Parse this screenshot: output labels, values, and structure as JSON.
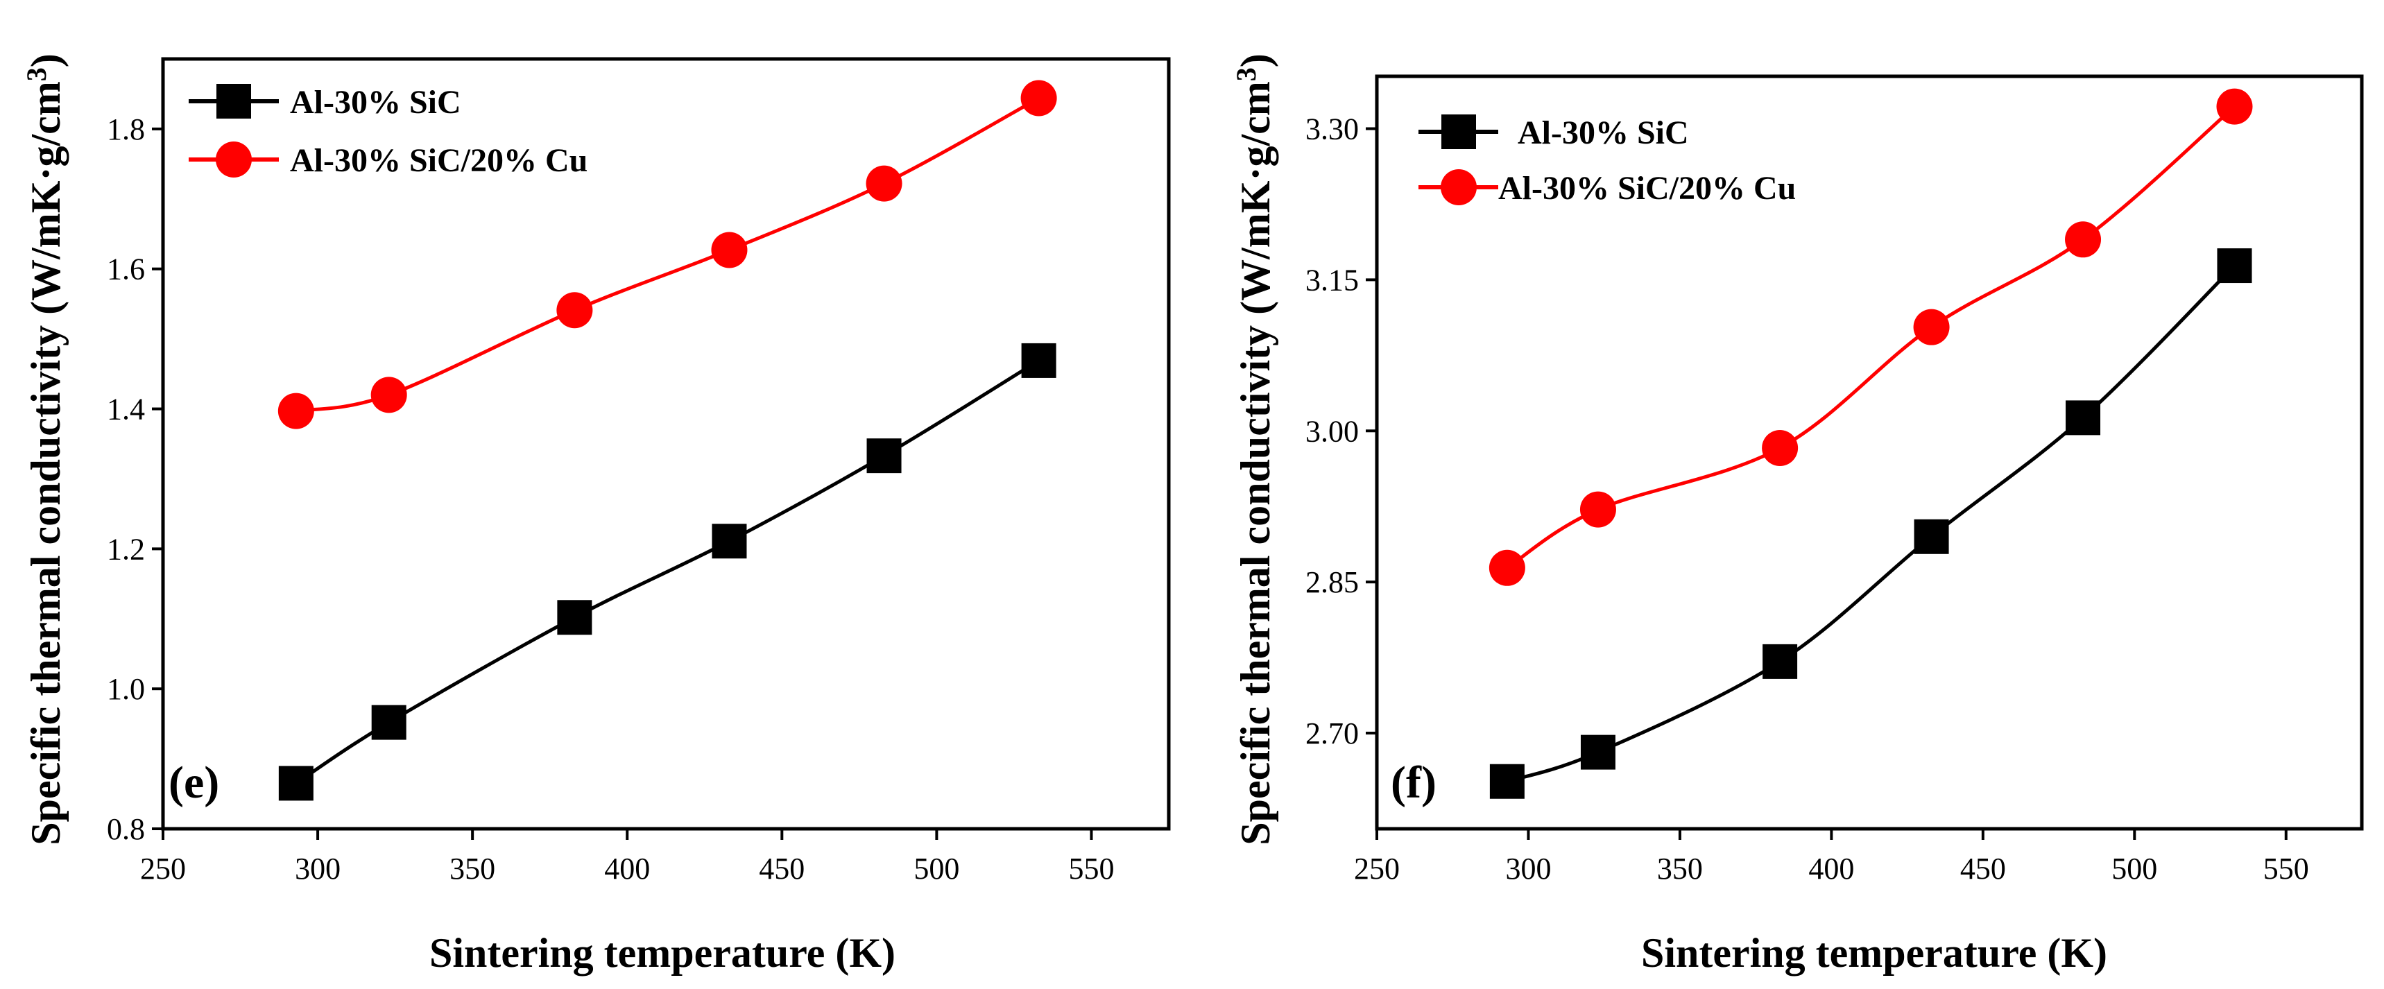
{
  "chart_data": [
    {
      "type": "line",
      "panel_label": "(e)",
      "xlabel": "Sintering temperature (K)",
      "ylabel": "Specific thermal conductivity (W/mK·g/cm³)",
      "ylabel_main": "Specific thermal conductivity (W/mK·g/cm",
      "ylabel_sup": "3",
      "ylabel_end": ")",
      "xlim": [
        250,
        575
      ],
      "ylim": [
        0.8,
        1.9
      ],
      "xticks": [
        250,
        300,
        350,
        400,
        450,
        500,
        550
      ],
      "yticks": [
        0.8,
        1.0,
        1.2,
        1.4,
        1.6,
        1.8
      ],
      "ytick_labels": [
        "0.8",
        "1.0",
        "1.2",
        "1.4",
        "1.6",
        "1.8"
      ],
      "legend_position": "top-left",
      "x": [
        293,
        323,
        383,
        433,
        483,
        533
      ],
      "series": [
        {
          "name": "Al-30% SiC",
          "marker": "square",
          "color": "#000000",
          "values": [
            0.865,
            0.952,
            1.102,
            1.211,
            1.333,
            1.469
          ]
        },
        {
          "name": "Al-30% SiC/20% Cu",
          "marker": "circle",
          "color": "#ff0000",
          "values": [
            1.397,
            1.42,
            1.541,
            1.627,
            1.722,
            1.844
          ]
        }
      ]
    },
    {
      "type": "line",
      "panel_label": "(f)",
      "xlabel": "Sintering temperature (K)",
      "ylabel": "Specific thermal conductivity (W/mK·g/cm³)",
      "ylabel_main": "Specific thermal conductivity (W/mK·g/cm",
      "ylabel_sup": "3",
      "ylabel_end": ")",
      "xlim": [
        250,
        575
      ],
      "ylim": [
        2.605,
        3.352
      ],
      "xticks": [
        250,
        300,
        350,
        400,
        450,
        500,
        550
      ],
      "yticks": [
        2.7,
        2.85,
        3.0,
        3.15,
        3.3
      ],
      "ytick_labels": [
        "2.70",
        "2.85",
        "3.00",
        "3.15",
        "3.30"
      ],
      "legend_position": "top-left",
      "x": [
        293,
        323,
        383,
        433,
        483,
        533
      ],
      "series": [
        {
          "name": "Al-30% SiC",
          "marker": "square",
          "color": "#000000",
          "values": [
            2.652,
            2.681,
            2.771,
            2.895,
            3.013,
            3.164
          ]
        },
        {
          "name": "Al-30% SiC/20% Cu",
          "marker": "circle",
          "color": "#ff0000",
          "values": [
            2.864,
            2.922,
            2.983,
            3.103,
            3.19,
            3.322
          ]
        }
      ]
    }
  ]
}
